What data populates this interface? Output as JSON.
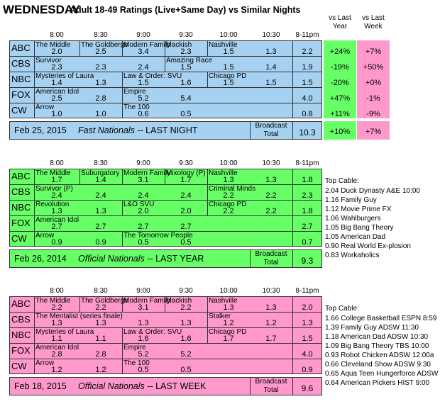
{
  "title": {
    "day": "WEDNESDAY",
    "rest": "Adult 18-49 Ratings (Live+Same Day) vs Similar Nights"
  },
  "compare_headers": {
    "vs_last_year": "vs Last\nYear",
    "vs_last_week": "vs Last\nWeek"
  },
  "time_slots": [
    "8:00",
    "8:30",
    "9:00",
    "9:30",
    "10:00",
    "10:30",
    "8-11pm"
  ],
  "colors": {
    "panel1": "#a7d1f1",
    "panel2": "#66ff66",
    "panel3": "#ff99cc",
    "green_cell": "#66ff66",
    "pink_cell": "#ff99cc"
  },
  "panels": [
    {
      "id": "last-night",
      "networks": [
        "ABC",
        "CBS",
        "NBC",
        "FOX",
        "CW"
      ],
      "shows": [
        [
          {
            "slot": 0,
            "name": "The Middle"
          },
          {
            "slot": 1,
            "name": "The Goldbergs"
          },
          {
            "slot": 2,
            "name": "Modern Family"
          },
          {
            "slot": 3,
            "name": "blackish"
          },
          {
            "slot": 4,
            "name": "Nashville"
          }
        ],
        [
          {
            "slot": 0,
            "name": "Survivor"
          },
          {
            "slot": 3,
            "name": "Amazing Race"
          }
        ],
        [
          {
            "slot": 0,
            "name": "Mysteries of Laura"
          },
          {
            "slot": 2,
            "name": "Law & Order: SVU"
          },
          {
            "slot": 4,
            "name": "Chicago PD"
          }
        ],
        [
          {
            "slot": 0,
            "name": "American Idol"
          },
          {
            "slot": 2,
            "name": "Empire"
          }
        ],
        [
          {
            "slot": 0,
            "name": "Arrow"
          },
          {
            "slot": 2,
            "name": "The 100"
          }
        ]
      ],
      "ratings": [
        [
          "2.0",
          "2.5",
          "3.4",
          "2.3",
          "1.5",
          "1.3",
          "2.2"
        ],
        [
          "2.3",
          "2.3",
          "2.4",
          "1.5",
          "1.5",
          "1.4",
          "1.9"
        ],
        [
          "1.4",
          "1.3",
          "1.5",
          "1.6",
          "1.5",
          "1.5",
          "1.5"
        ],
        [
          "2.5",
          "2.8",
          "5.2",
          "5.4",
          "",
          "",
          "4.0"
        ],
        [
          "1.0",
          "1.0",
          "0.6",
          "0.5",
          "",
          "",
          "0.8"
        ]
      ],
      "vs_last_year": [
        "+24%",
        "-19%",
        "-20%",
        "+47%",
        "+11%"
      ],
      "vs_last_week": [
        "+7%",
        "+50%",
        "+0%",
        "-1%",
        "-9%"
      ],
      "total_vs_last_year": "+10%",
      "total_vs_last_week": "+7%",
      "footer": {
        "date": "Feb 25, 2015",
        "label": "Fast Nationals -- LAST NIGHT"
      },
      "broadcast_label": "Broadcast\nTotal",
      "total": "10.3"
    },
    {
      "id": "last-year",
      "networks": [
        "ABC",
        "CBS",
        "NBC",
        "FOX",
        "CW"
      ],
      "shows": [
        [
          {
            "slot": 0,
            "name": "The Middle"
          },
          {
            "slot": 1,
            "name": "Suburgatory"
          },
          {
            "slot": 2,
            "name": "Modern Family"
          },
          {
            "slot": 3,
            "name": "Mixology (P)"
          },
          {
            "slot": 4,
            "name": "Nashville"
          }
        ],
        [
          {
            "slot": 0,
            "name": "Survivor (P)"
          },
          {
            "slot": 4,
            "name": "Criminal Minds"
          }
        ],
        [
          {
            "slot": 0,
            "name": "Revolution"
          },
          {
            "slot": 2,
            "name": "L&O SVU"
          },
          {
            "slot": 4,
            "name": "Chicago PD"
          }
        ],
        [
          {
            "slot": 0,
            "name": "American Idol"
          }
        ],
        [
          {
            "slot": 0,
            "name": "Arrow"
          },
          {
            "slot": 2,
            "name": "The Tomorrow People"
          }
        ]
      ],
      "ratings": [
        [
          "1.7",
          "1.4",
          "3.1",
          "1.7",
          "1.3",
          "1.3",
          "1.8"
        ],
        [
          "2.4",
          "2.4",
          "2.4",
          "2.4",
          "2.2",
          "2.2",
          "2.3"
        ],
        [
          "1.3",
          "1.3",
          "2.0",
          "2.0",
          "2.2",
          "2.2",
          "1.8"
        ],
        [
          "2.7",
          "2.7",
          "2.7",
          "2.7",
          "",
          "",
          "2.7"
        ],
        [
          "0.9",
          "0.9",
          "0.5",
          "0.5",
          "",
          "",
          "0.7"
        ]
      ],
      "footer": {
        "date": "Feb 26, 2014",
        "label": "Official Nationals -- LAST YEAR"
      },
      "broadcast_label": "Broadcast\nTotal",
      "total": "9.3",
      "top_cable_title": "Top Cable:",
      "top_cable": [
        "2.04 Duck Dynasty A&E 10:00",
        "1.16 Family Guy",
        "1.12 Movie Prime FX",
        "1.06 Wahlburgers",
        "1.05 Big Bang Theory",
        "1.05 American Dad",
        "0.90 Real World Ex-plosion",
        "0.83 Workaholics"
      ]
    },
    {
      "id": "last-week",
      "networks": [
        "ABC",
        "CBS",
        "NBC",
        "FOX",
        "CW"
      ],
      "shows": [
        [
          {
            "slot": 0,
            "name": "The Middle"
          },
          {
            "slot": 1,
            "name": "The Goldbergs"
          },
          {
            "slot": 2,
            "name": "Modern Family"
          },
          {
            "slot": 3,
            "name": "blackish"
          },
          {
            "slot": 4,
            "name": "Nashville"
          }
        ],
        [
          {
            "slot": 0,
            "name": "The Mentalist (series finale)"
          },
          {
            "slot": 4,
            "name": "Stalker"
          }
        ],
        [
          {
            "slot": 0,
            "name": "Mysteries of Laura"
          },
          {
            "slot": 2,
            "name": "Law & Order: SVU"
          },
          {
            "slot": 4,
            "name": "Chicago PD"
          }
        ],
        [
          {
            "slot": 0,
            "name": "American Idol"
          },
          {
            "slot": 2,
            "name": "Empire"
          }
        ],
        [
          {
            "slot": 0,
            "name": "Arrow"
          },
          {
            "slot": 2,
            "name": "The 100"
          }
        ]
      ],
      "ratings": [
        [
          "2.2",
          "2.2",
          "3.1",
          "2.2",
          "1.3",
          "1.3",
          "2.0"
        ],
        [
          "1.3",
          "1.3",
          "1.3",
          "1.3",
          "1.2",
          "1.2",
          "1.3"
        ],
        [
          "1.1",
          "1.1",
          "1.6",
          "1.6",
          "1.7",
          "1.7",
          "1.5"
        ],
        [
          "2.8",
          "2.8",
          "5.2",
          "5.2",
          "",
          "",
          "4.0"
        ],
        [
          "1.2",
          "1.2",
          "0.5",
          "0.5",
          "",
          "",
          "0.9"
        ]
      ],
      "footer": {
        "date": "Feb 18, 2015",
        "label": "Official Nationals -- LAST WEEK"
      },
      "broadcast_label": "Broadcast\nTotal",
      "total": "9.6",
      "top_cable_title": "Top Cable:",
      "top_cable": [
        "1.66 College Basketball ESPN 8:59",
        "1.39 Family Guy ADSW 11:30",
        "1.18 American Dad ADSW 10:30",
        "1.09 Big Bang Theory TBS 10:00",
        "0.93 Robot Chicken ADSW 12:00a",
        "0.66 Cleveland Show ADSW 9:30",
        "0.65 Aqua Teen Hungerforce ADSW 1",
        "0.64 American Pickers HIST 9:00"
      ]
    }
  ]
}
